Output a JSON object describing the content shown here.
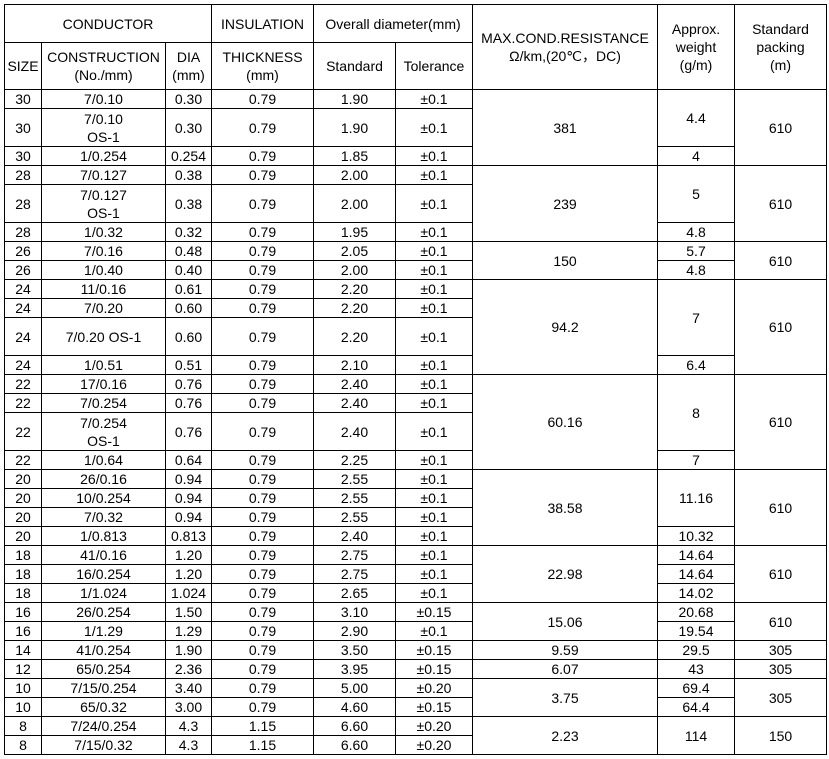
{
  "header": {
    "conductor": "CONDUCTOR",
    "insulation": "INSULATION",
    "overall_diameter": "Overall diameter(mm)",
    "resistance": "MAX.COND.RESISTANCE\nΩ/km,(20℃，DC)",
    "weight": "Approx.\nweight\n(g/m)",
    "packing": "Standard\npacking\n(m)",
    "size": "SIZE",
    "construction": "CONSTRUCTION\n(No./mm)",
    "dia": "DIA\n(mm)",
    "thickness": "THICKNESS\n(mm)",
    "standard": "Standard",
    "tolerance": "Tolerance"
  },
  "groups": [
    {
      "resistance": "381",
      "packing": "610",
      "weights": [
        {
          "v": "4.4",
          "span": 2
        },
        {
          "v": "4",
          "span": 1
        }
      ],
      "rows": [
        [
          "30",
          "7/0.10",
          "0.30",
          "0.79",
          "1.90",
          "±0.1"
        ],
        [
          "30",
          "7/0.10\nOS-1",
          "0.30",
          "0.79",
          "1.90",
          "±0.1"
        ],
        [
          "30",
          "1/0.254",
          "0.254",
          "0.79",
          "1.85",
          "±0.1"
        ]
      ]
    },
    {
      "resistance": "239",
      "packing": "610",
      "weights": [
        {
          "v": "5",
          "span": 2
        },
        {
          "v": "4.8",
          "span": 1
        }
      ],
      "rows": [
        [
          "28",
          "7/0.127",
          "0.38",
          "0.79",
          "2.00",
          "±0.1"
        ],
        [
          "28",
          "7/0.127\nOS-1",
          "0.38",
          "0.79",
          "2.00",
          "±0.1"
        ],
        [
          "28",
          "1/0.32",
          "0.32",
          "0.79",
          "1.95",
          "±0.1"
        ]
      ]
    },
    {
      "resistance": "150",
      "packing": "610",
      "weights": [
        {
          "v": "5.7",
          "span": 1
        },
        {
          "v": "4.8",
          "span": 1
        }
      ],
      "rows": [
        [
          "26",
          "7/0.16",
          "0.48",
          "0.79",
          "2.05",
          "±0.1"
        ],
        [
          "26",
          "1/0.40",
          "0.40",
          "0.79",
          "2.00",
          "±0.1"
        ]
      ]
    },
    {
      "resistance": "94.2",
      "packing": "610",
      "weights": [
        {
          "v": "7",
          "span": 3
        },
        {
          "v": "6.4",
          "span": 1
        }
      ],
      "rows": [
        [
          "24",
          "11/0.16",
          "0.61",
          "0.79",
          "2.20",
          "±0.1"
        ],
        [
          "24",
          "7/0.20",
          "0.60",
          "0.79",
          "2.20",
          "±0.1"
        ],
        [
          "24",
          "7/0.20 OS-1",
          "0.60",
          "0.79",
          "2.20",
          "±0.1"
        ],
        [
          "24",
          "1/0.51",
          "0.51",
          "0.79",
          "2.10",
          "±0.1"
        ]
      ]
    },
    {
      "resistance": "60.16",
      "packing": "610",
      "weights": [
        {
          "v": "8",
          "span": 3
        },
        {
          "v": "7",
          "span": 1
        }
      ],
      "rows": [
        [
          "22",
          "17/0.16",
          "0.76",
          "0.79",
          "2.40",
          "±0.1"
        ],
        [
          "22",
          "7/0.254",
          "0.76",
          "0.79",
          "2.40",
          "±0.1"
        ],
        [
          "22",
          "7/0.254\nOS-1",
          "0.76",
          "0.79",
          "2.40",
          "±0.1"
        ],
        [
          "22",
          "1/0.64",
          "0.64",
          "0.79",
          "2.25",
          "±0.1"
        ]
      ]
    },
    {
      "resistance": "38.58",
      "packing": "610",
      "weights": [
        {
          "v": "11.16",
          "span": 3
        },
        {
          "v": "10.32",
          "span": 1
        }
      ],
      "rows": [
        [
          "20",
          "26/0.16",
          "0.94",
          "0.79",
          "2.55",
          "±0.1"
        ],
        [
          "20",
          "10/0.254",
          "0.94",
          "0.79",
          "2.55",
          "±0.1"
        ],
        [
          "20",
          "7/0.32",
          "0.94",
          "0.79",
          "2.55",
          "±0.1"
        ],
        [
          "20",
          "1/0.813",
          "0.813",
          "0.79",
          "2.40",
          "±0.1"
        ]
      ]
    },
    {
      "resistance": "22.98",
      "packing": "610",
      "weights": [
        {
          "v": "14.64",
          "span": 1
        },
        {
          "v": "14.64",
          "span": 1
        },
        {
          "v": "14.02",
          "span": 1
        }
      ],
      "rows": [
        [
          "18",
          "41/0.16",
          "1.20",
          "0.79",
          "2.75",
          "±0.1"
        ],
        [
          "18",
          "16/0.254",
          "1.20",
          "0.79",
          "2.75",
          "±0.1"
        ],
        [
          "18",
          "1/1.024",
          "1.024",
          "0.79",
          "2.65",
          "±0.1"
        ]
      ]
    },
    {
      "resistance": "15.06",
      "packing": "610",
      "weights": [
        {
          "v": "20.68",
          "span": 1
        },
        {
          "v": "19.54",
          "span": 1
        }
      ],
      "rows": [
        [
          "16",
          "26/0.254",
          "1.50",
          "0.79",
          "3.10",
          "±0.15"
        ],
        [
          "16",
          "1/1.29",
          "1.29",
          "0.79",
          "2.90",
          "±0.1"
        ]
      ]
    },
    {
      "resistance": "9.59",
      "packing": "305",
      "weights": [
        {
          "v": "29.5",
          "span": 1
        }
      ],
      "rows": [
        [
          "14",
          "41/0.254",
          "1.90",
          "0.79",
          "3.50",
          "±0.15"
        ]
      ]
    },
    {
      "resistance": "6.07",
      "packing": "305",
      "weights": [
        {
          "v": "43",
          "span": 1
        }
      ],
      "rows": [
        [
          "12",
          "65/0.254",
          "2.36",
          "0.79",
          "3.95",
          "±0.15"
        ]
      ]
    },
    {
      "resistance": "3.75",
      "packing": "305",
      "weights": [
        {
          "v": "69.4",
          "span": 1
        },
        {
          "v": "64.4",
          "span": 1
        }
      ],
      "rows": [
        [
          "10",
          "7/15/0.254",
          "3.40",
          "0.79",
          "5.00",
          "±0.20"
        ],
        [
          "10",
          "65/0.32",
          "3.00",
          "0.79",
          "4.60",
          "±0.15"
        ]
      ]
    },
    {
      "resistance": "2.23",
      "packing": "150",
      "weights": [
        {
          "v": "114",
          "span": 2
        }
      ],
      "rows": [
        [
          "8",
          "7/24/0.254",
          "4.3",
          "1.15",
          "6.60",
          "±0.20"
        ],
        [
          "8",
          "7/15/0.32",
          "4.3",
          "1.15",
          "6.60",
          "±0.20"
        ]
      ]
    }
  ]
}
